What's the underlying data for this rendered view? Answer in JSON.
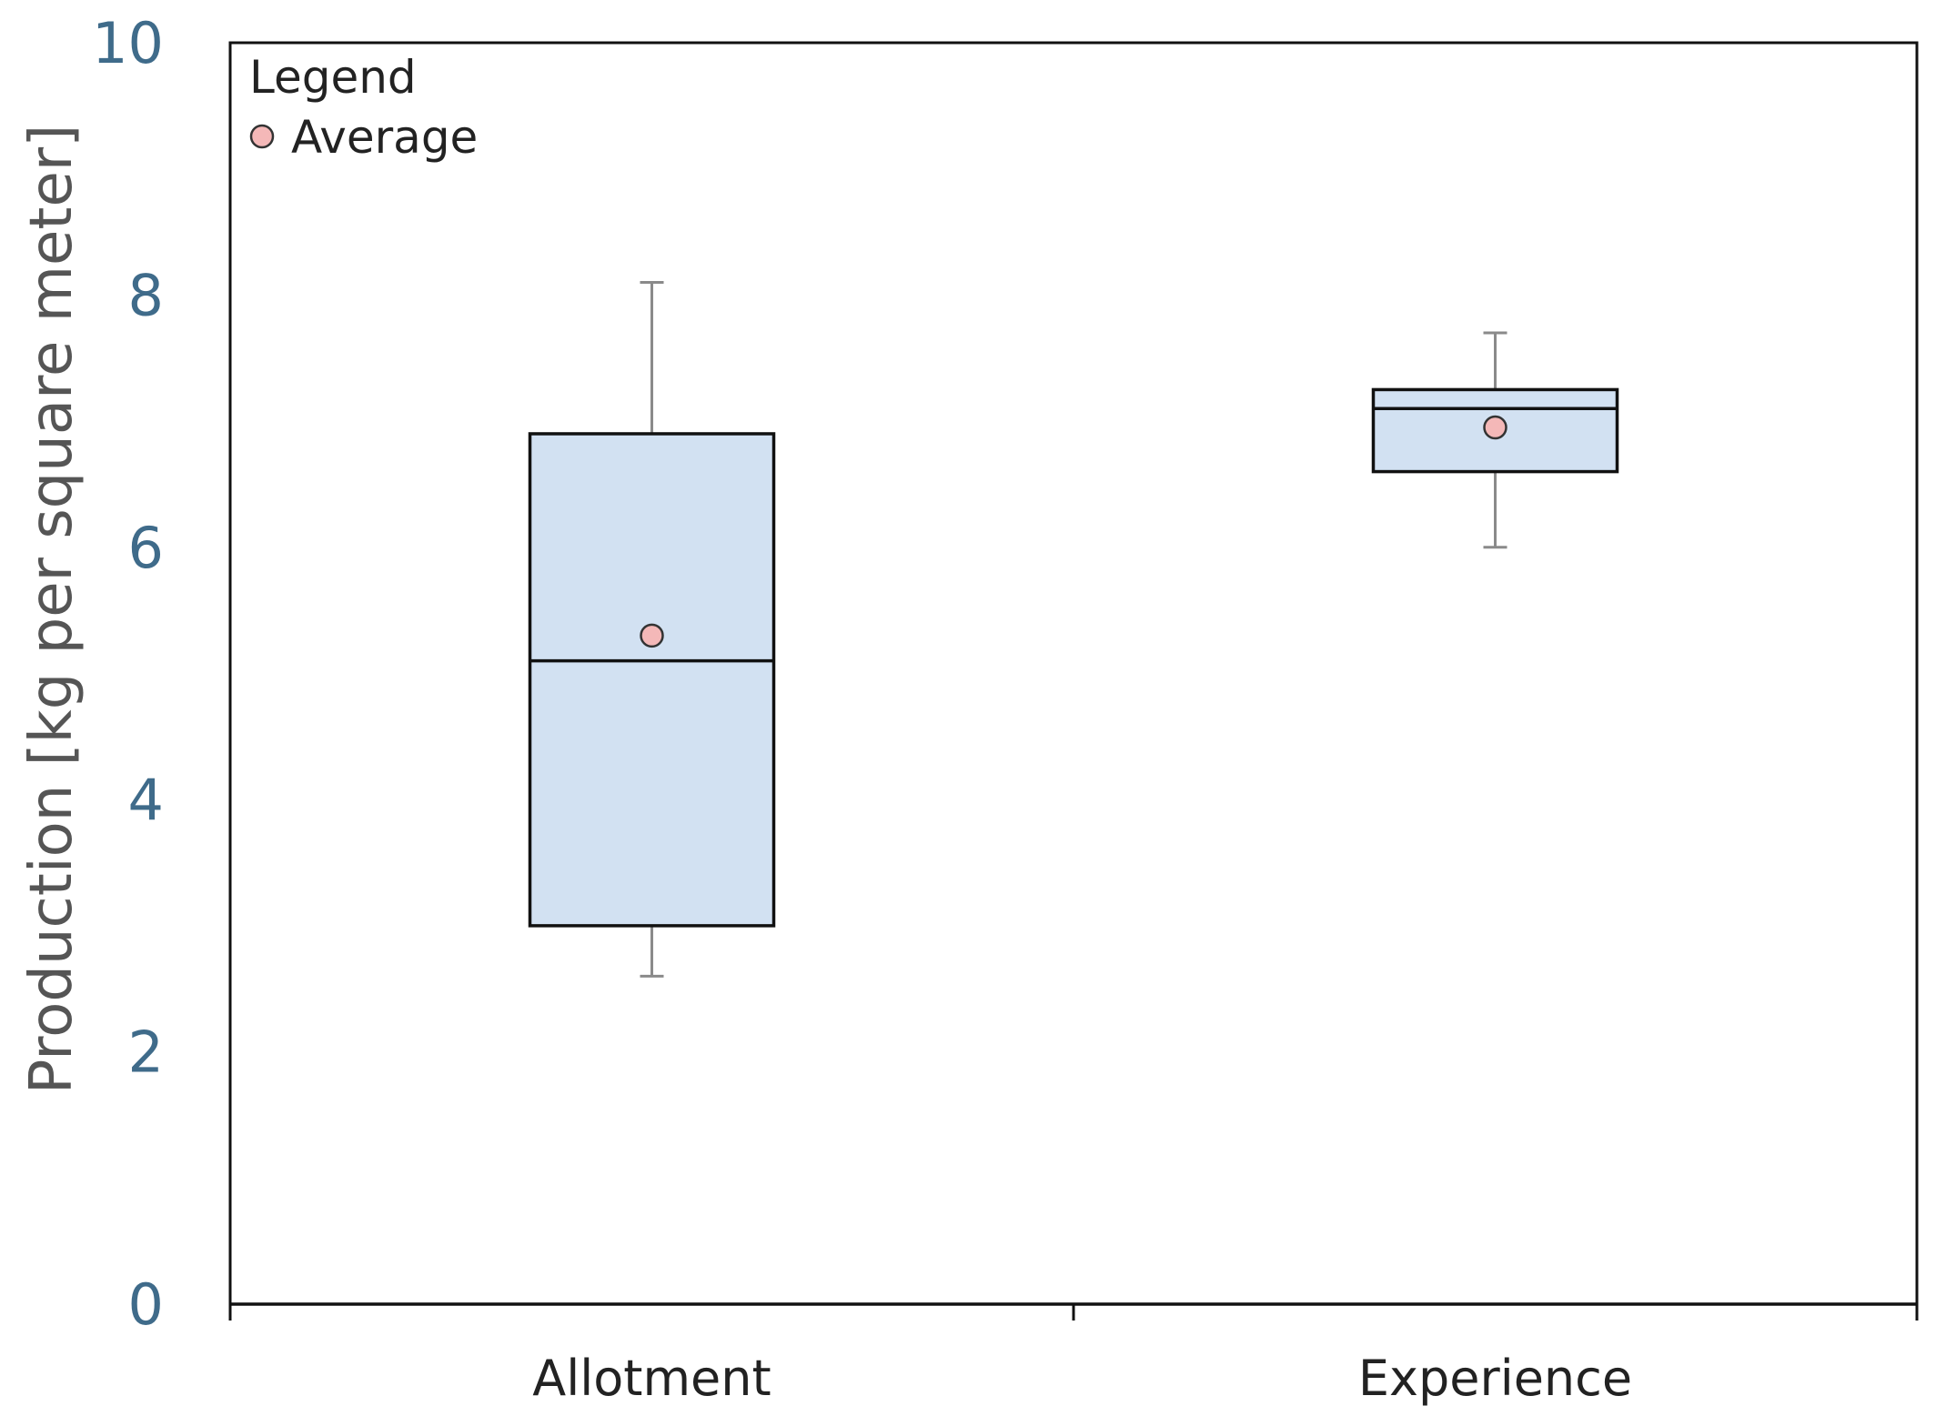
{
  "chart_data": {
    "type": "boxplot",
    "ylabel": "Production [kg per square meter]",
    "xlabel": "",
    "ylim": [
      0,
      10
    ],
    "yticks": [
      "0",
      "2",
      "4",
      "6",
      "8",
      "10"
    ],
    "categories": [
      "Allotment",
      "Experience"
    ],
    "boxes": [
      {
        "category": "Allotment",
        "whisker_low": 2.6,
        "q1": 3.0,
        "median": 5.1,
        "q3": 6.9,
        "whisker_high": 8.1,
        "mean": 5.3
      },
      {
        "category": "Experience",
        "whisker_low": 6.0,
        "q1": 6.6,
        "median": 7.1,
        "q3": 7.25,
        "whisker_high": 7.7,
        "mean": 6.95
      }
    ],
    "legend": {
      "title": "Legend",
      "items": [
        "Average"
      ],
      "placement": "top-left"
    },
    "colors": {
      "box_fill": "#d2e1f2",
      "box_stroke": "#111111",
      "whisker": "#8a8a8a",
      "mean_fill": "#f4b8b8",
      "mean_stroke": "#333333",
      "tick_label": "#3f6b8a"
    },
    "grid": false
  }
}
